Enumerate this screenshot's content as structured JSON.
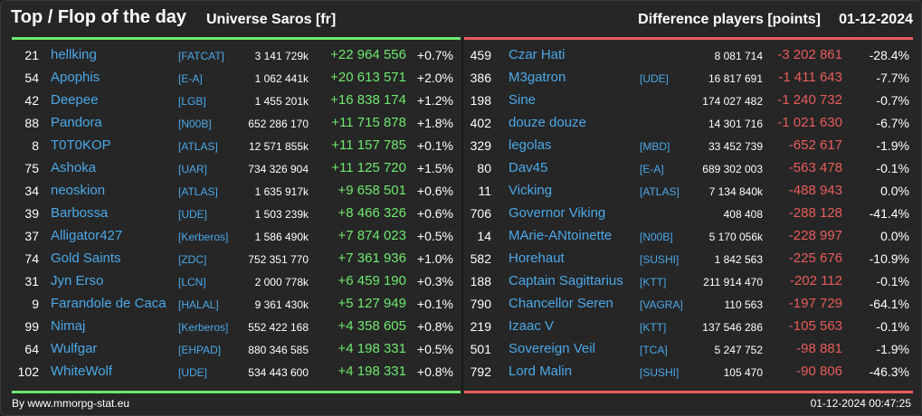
{
  "header": {
    "title": "Top / Flop of the day",
    "universe": "Universe Saros [fr]",
    "diff_label": "Difference players [points]",
    "date": "01-12-2024"
  },
  "colors": {
    "top_accent": "#6ee86e",
    "flop_accent": "#e85c5c",
    "name_link": "#4aa8e8",
    "background": "#262626"
  },
  "top": [
    {
      "rank": "21",
      "name": "hellking",
      "ally": "[FATCAT]",
      "points": "3 141 729k",
      "diff": "+22 964 556",
      "pct": "+0.7%"
    },
    {
      "rank": "54",
      "name": "Apophis",
      "ally": "[E-A]",
      "points": "1 062 441k",
      "diff": "+20 613 571",
      "pct": "+2.0%"
    },
    {
      "rank": "42",
      "name": "Deepee",
      "ally": "[LGB]",
      "points": "1 455 201k",
      "diff": "+16 838 174",
      "pct": "+1.2%"
    },
    {
      "rank": "88",
      "name": "Pandora",
      "ally": "[N00B]",
      "points": "652 286 170",
      "diff": "+11 715 878",
      "pct": "+1.8%"
    },
    {
      "rank": "8",
      "name": "T0T0KOP",
      "ally": "[ATLAS]",
      "points": "12 571 855k",
      "diff": "+11 157 785",
      "pct": "+0.1%"
    },
    {
      "rank": "75",
      "name": "Ashoka",
      "ally": "[UAR]",
      "points": "734 326 904",
      "diff": "+11 125 720",
      "pct": "+1.5%"
    },
    {
      "rank": "34",
      "name": "neoskion",
      "ally": "[ATLAS]",
      "points": "1 635 917k",
      "diff": "+9 658 501",
      "pct": "+0.6%"
    },
    {
      "rank": "39",
      "name": "Barbossa",
      "ally": "[UDE]",
      "points": "1 503 239k",
      "diff": "+8 466 326",
      "pct": "+0.6%"
    },
    {
      "rank": "37",
      "name": "Alligator427",
      "ally": "[Kerberos]",
      "points": "1 586 490k",
      "diff": "+7 874 023",
      "pct": "+0.5%"
    },
    {
      "rank": "74",
      "name": "Gold Saints",
      "ally": "[ZDC]",
      "points": "752 351 770",
      "diff": "+7 361 936",
      "pct": "+1.0%"
    },
    {
      "rank": "31",
      "name": "Jyn Erso",
      "ally": "[LCN]",
      "points": "2 000 778k",
      "diff": "+6 459 190",
      "pct": "+0.3%"
    },
    {
      "rank": "9",
      "name": "Farandole de Caca",
      "ally": "[HALAL]",
      "points": "9 361 430k",
      "diff": "+5 127 949",
      "pct": "+0.1%"
    },
    {
      "rank": "99",
      "name": "Nimaj",
      "ally": "[Kerberos]",
      "points": "552 422 168",
      "diff": "+4 358 605",
      "pct": "+0.8%"
    },
    {
      "rank": "64",
      "name": "Wulfgar",
      "ally": "[EHPAD]",
      "points": "880 346 585",
      "diff": "+4 198 331",
      "pct": "+0.5%"
    },
    {
      "rank": "102",
      "name": "WhiteWolf",
      "ally": "[UDE]",
      "points": "534 443 600",
      "diff": "+4 198 331",
      "pct": "+0.8%"
    }
  ],
  "flop": [
    {
      "rank": "459",
      "name": "Czar Hati",
      "ally": "",
      "points": "8 081 714",
      "diff": "-3 202 861",
      "pct": "-28.4%"
    },
    {
      "rank": "386",
      "name": "M3gatron",
      "ally": "[UDE]",
      "points": "16 817 691",
      "diff": "-1 411 643",
      "pct": "-7.7%"
    },
    {
      "rank": "198",
      "name": "Sine",
      "ally": "",
      "points": "174 027 482",
      "diff": "-1 240 732",
      "pct": "-0.7%"
    },
    {
      "rank": "402",
      "name": "douze douze",
      "ally": "",
      "points": "14 301 716",
      "diff": "-1 021 630",
      "pct": "-6.7%"
    },
    {
      "rank": "329",
      "name": "legolas",
      "ally": "[MBD]",
      "points": "33 452 739",
      "diff": "-652 617",
      "pct": "-1.9%"
    },
    {
      "rank": "80",
      "name": "Dav45",
      "ally": "[E-A]",
      "points": "689 302 003",
      "diff": "-563 478",
      "pct": "-0.1%"
    },
    {
      "rank": "11",
      "name": "Vicking",
      "ally": "[ATLAS]",
      "points": "7 134 840k",
      "diff": "-488 943",
      "pct": "0.0%"
    },
    {
      "rank": "706",
      "name": "Governor Viking",
      "ally": "",
      "points": "408 408",
      "diff": "-288 128",
      "pct": "-41.4%"
    },
    {
      "rank": "14",
      "name": "MArie-ANtoinette",
      "ally": "[N00B]",
      "points": "5 170 056k",
      "diff": "-228 997",
      "pct": "0.0%"
    },
    {
      "rank": "582",
      "name": "Horehaut",
      "ally": "[SUSHI]",
      "points": "1 842 563",
      "diff": "-225 676",
      "pct": "-10.9%"
    },
    {
      "rank": "188",
      "name": "Captain Sagittarius",
      "ally": "[KTT]",
      "points": "211 914 470",
      "diff": "-202 112",
      "pct": "-0.1%"
    },
    {
      "rank": "790",
      "name": "Chancellor Seren",
      "ally": "[VAGRA]",
      "points": "110 563",
      "diff": "-197 729",
      "pct": "-64.1%"
    },
    {
      "rank": "219",
      "name": "Izaac V",
      "ally": "[KTT]",
      "points": "137 546 286",
      "diff": "-105 563",
      "pct": "-0.1%"
    },
    {
      "rank": "501",
      "name": "Sovereign Veil",
      "ally": "[TCA]",
      "points": "5 247 752",
      "diff": "-98 881",
      "pct": "-1.9%"
    },
    {
      "rank": "792",
      "name": "Lord Malin",
      "ally": "[SUSHI]",
      "points": "105 470",
      "diff": "-90 806",
      "pct": "-46.3%"
    }
  ],
  "footer": {
    "source": "By www.mmorpg-stat.eu",
    "timestamp": "01-12-2024 00:47:25"
  }
}
